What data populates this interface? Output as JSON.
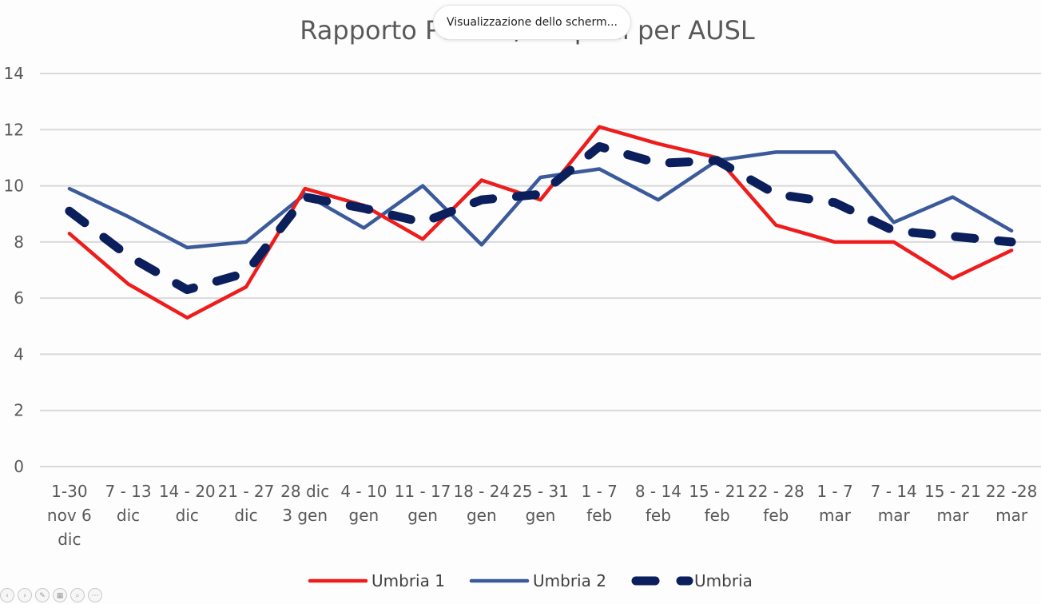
{
  "overlay": {
    "text": "Visualizzazione dello scherm..."
  },
  "chart_data": {
    "type": "line",
    "title": "Rapporto Positivi/tamponi per AUSL",
    "ylim": [
      0,
      14
    ],
    "yticks": [
      0,
      2,
      4,
      6,
      8,
      10,
      12,
      14
    ],
    "grid": true,
    "legend_position": "bottom",
    "categories": [
      [
        "1-30",
        "nov 6",
        "dic"
      ],
      [
        "7 - 13",
        "dic"
      ],
      [
        "14 - 20",
        "dic"
      ],
      [
        "21 - 27",
        "dic"
      ],
      [
        "28 dic",
        "3 gen"
      ],
      [
        "4 - 10",
        "gen"
      ],
      [
        "11 - 17",
        "gen"
      ],
      [
        "18 - 24",
        "gen"
      ],
      [
        "25 - 31",
        "gen"
      ],
      [
        "1 - 7",
        "feb"
      ],
      [
        "8 - 14",
        "feb"
      ],
      [
        "15 - 21",
        "feb"
      ],
      [
        "22 - 28",
        "feb"
      ],
      [
        "1 - 7",
        "mar"
      ],
      [
        "7 - 14",
        "mar"
      ],
      [
        "15 - 21",
        "mar"
      ],
      [
        "22 -28",
        "mar"
      ]
    ],
    "series": [
      {
        "name": "Umbria 1",
        "color": "#ee1c1c",
        "style": "solid",
        "values": [
          8.3,
          6.5,
          5.3,
          6.4,
          9.9,
          9.3,
          8.1,
          10.2,
          9.5,
          12.1,
          11.5,
          11.0,
          8.6,
          8.0,
          8.0,
          6.7,
          7.7
        ]
      },
      {
        "name": "Umbria 2",
        "color": "#3a5a9a",
        "style": "solid",
        "values": [
          9.9,
          8.9,
          7.8,
          8.0,
          9.7,
          8.5,
          10.0,
          7.9,
          10.3,
          10.6,
          9.5,
          10.9,
          11.2,
          11.2,
          8.7,
          9.6,
          8.4
        ]
      },
      {
        "name": "Umbria",
        "color": "#0a1f5c",
        "style": "dashed",
        "values": [
          9.1,
          7.5,
          6.3,
          6.9,
          9.6,
          9.2,
          8.7,
          9.5,
          9.7,
          11.4,
          10.8,
          10.9,
          9.7,
          9.4,
          8.4,
          8.2,
          8.0
        ]
      }
    ]
  },
  "toolbar": {
    "buttons": [
      {
        "name": "previous-slide-button",
        "glyph": "‹"
      },
      {
        "name": "next-slide-button",
        "glyph": "›"
      },
      {
        "name": "pen-tool-button",
        "glyph": "✎"
      },
      {
        "name": "slides-overview-button",
        "glyph": "▦"
      },
      {
        "name": "zoom-button",
        "glyph": "⌕"
      },
      {
        "name": "more-options-button",
        "glyph": "⋯"
      }
    ]
  }
}
